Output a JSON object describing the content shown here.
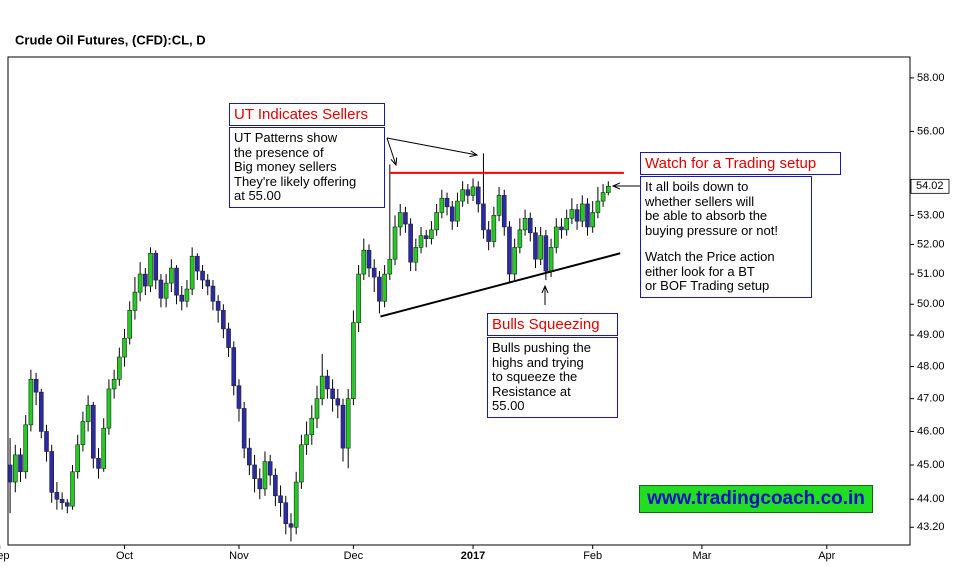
{
  "chart_data": {
    "type": "candlestick",
    "title": "Crude Oil Futures, (CFD):CL, D",
    "log_scale": true,
    "xlim": [
      -0.4,
      173
    ],
    "ylim": [
      42.7,
      58.8
    ],
    "xticks": [
      {
        "value": -2,
        "label": "Sep"
      },
      {
        "value": 22,
        "label": "Oct"
      },
      {
        "value": 44,
        "label": "Nov"
      },
      {
        "value": 66,
        "label": "Dec"
      },
      {
        "value": 89,
        "label": "2017"
      },
      {
        "value": 112,
        "label": "Feb"
      },
      {
        "value": 133,
        "label": "Mar"
      },
      {
        "value": 157,
        "label": "Apr"
      }
    ],
    "yticks": [
      {
        "value": 43.2,
        "label": "43.20"
      },
      {
        "value": 44,
        "label": "44.00"
      },
      {
        "value": 45,
        "label": "45.00"
      },
      {
        "value": 46,
        "label": "46.00"
      },
      {
        "value": 47,
        "label": "47.00"
      },
      {
        "value": 48,
        "label": "48.00"
      },
      {
        "value": 49,
        "label": "49.00"
      },
      {
        "value": 50,
        "label": "50.00"
      },
      {
        "value": 51,
        "label": "51.00"
      },
      {
        "value": 52,
        "label": "52.00"
      },
      {
        "value": 53,
        "label": "53.00"
      },
      {
        "value": 56,
        "label": "56.00"
      },
      {
        "value": 58,
        "label": "58.00"
      }
    ],
    "last_price": 54.02,
    "up_color": "#22cc22",
    "down_color": "#2a2aa8",
    "open": [
      45.0,
      44.5,
      45.3,
      44.8,
      46.2,
      47.6,
      47.2,
      46.0,
      45.4,
      44.2,
      44.0,
      43.9,
      43.8,
      44.8,
      45.6,
      46.3,
      46.8,
      45.2,
      44.9,
      46.1,
      47.3,
      47.6,
      48.3,
      48.9,
      49.8,
      50.4,
      51.0,
      50.6,
      51.7,
      50.8,
      50.2,
      50.7,
      51.2,
      50.3,
      50.1,
      50.5,
      51.6,
      51.1,
      50.8,
      50.6,
      50.1,
      49.8,
      49.2,
      48.6,
      47.4,
      46.7,
      45.5,
      45.0,
      44.6,
      44.3,
      45.1,
      44.7,
      44.1,
      43.9,
      43.3,
      43.2,
      44.5,
      45.6,
      45.9,
      46.4,
      47.0,
      47.7,
      47.3,
      47.0,
      46.8,
      45.5,
      47.0,
      49.4,
      51.0,
      51.8,
      51.2,
      50.9,
      50.1,
      51.0,
      51.5,
      52.6,
      53.1,
      52.7,
      51.4,
      51.9,
      52.3,
      52.2,
      52.5,
      53.1,
      53.6,
      53.3,
      52.8,
      53.5,
      53.9,
      53.7,
      54.0,
      53.4,
      52.5,
      52.1,
      53.0,
      53.7,
      52.6,
      51.0,
      51.9,
      52.5,
      52.9,
      52.4,
      51.5,
      52.3,
      51.1,
      51.9,
      52.6,
      52.5,
      52.9,
      53.2,
      52.8,
      53.4,
      52.6,
      53.1,
      53.5,
      53.8
    ],
    "high": [
      45.8,
      45.6,
      45.5,
      46.5,
      47.9,
      47.8,
      47.3,
      46.2,
      45.6,
      44.5,
      44.2,
      44.0,
      45.0,
      45.9,
      46.6,
      47.1,
      46.9,
      45.5,
      46.4,
      47.6,
      47.9,
      48.6,
      49.2,
      50.1,
      50.9,
      51.4,
      51.2,
      51.9,
      51.8,
      51.0,
      51.0,
      51.5,
      51.3,
      50.6,
      50.8,
      51.9,
      51.7,
      51.3,
      51.0,
      50.8,
      50.3,
      50.0,
      49.4,
      48.8,
      47.6,
      46.9,
      45.8,
      45.3,
      44.9,
      45.4,
      45.3,
      44.9,
      44.4,
      44.1,
      43.6,
      44.8,
      45.9,
      46.3,
      46.8,
      47.4,
      48.4,
      47.9,
      47.6,
      47.3,
      47.0,
      47.3,
      49.8,
      51.3,
      52.2,
      52.0,
      51.5,
      51.1,
      51.3,
      54.8,
      53.0,
      53.4,
      53.3,
      52.9,
      52.2,
      52.6,
      52.5,
      52.8,
      53.4,
      53.9,
      53.8,
      53.5,
      53.8,
      54.2,
      54.1,
      54.3,
      54.2,
      55.2,
      52.8,
      53.3,
      54.0,
      53.9,
      52.8,
      52.2,
      52.9,
      53.2,
      53.1,
      52.6,
      52.6,
      52.5,
      52.2,
      52.9,
      52.9,
      53.2,
      53.6,
      53.4,
      53.7,
      53.6,
      53.5,
      54.0,
      54.1,
      54.2
    ],
    "low": [
      43.6,
      44.2,
      44.5,
      44.6,
      46.0,
      46.8,
      45.8,
      45.1,
      43.9,
      43.7,
      43.7,
      43.6,
      43.7,
      44.6,
      45.4,
      46.0,
      44.9,
      44.6,
      44.8,
      45.9,
      47.0,
      47.4,
      48.0,
      48.7,
      49.5,
      50.1,
      50.3,
      50.4,
      50.5,
      49.9,
      49.9,
      50.4,
      50.0,
      49.8,
      49.9,
      50.3,
      50.8,
      50.5,
      50.3,
      49.8,
      49.4,
      48.9,
      48.3,
      47.1,
      46.3,
      45.2,
      44.7,
      44.2,
      44.0,
      44.1,
      44.4,
      43.8,
      43.5,
      43.0,
      42.8,
      43.0,
      44.3,
      45.3,
      45.6,
      46.1,
      46.8,
      47.0,
      46.6,
      46.4,
      45.1,
      44.9,
      46.8,
      49.1,
      50.8,
      50.9,
      50.4,
      49.7,
      49.9,
      50.8,
      51.3,
      52.3,
      52.4,
      51.1,
      51.1,
      51.7,
      51.9,
      52.0,
      52.3,
      52.9,
      53.0,
      52.5,
      52.6,
      53.3,
      53.4,
      53.5,
      53.1,
      52.2,
      51.8,
      51.9,
      52.8,
      52.3,
      50.7,
      50.8,
      51.7,
      52.3,
      52.1,
      51.2,
      51.3,
      50.8,
      50.9,
      51.7,
      52.2,
      52.3,
      52.7,
      52.5,
      52.6,
      52.3,
      52.4,
      52.9,
      53.3,
      53.7
    ],
    "close": [
      44.5,
      45.3,
      44.8,
      46.2,
      47.6,
      47.2,
      46.0,
      45.4,
      44.2,
      44.0,
      43.9,
      43.8,
      44.8,
      45.6,
      46.3,
      46.8,
      45.2,
      44.9,
      46.1,
      47.3,
      47.6,
      48.3,
      48.9,
      49.8,
      50.4,
      51.0,
      50.6,
      51.7,
      50.8,
      50.2,
      50.7,
      51.2,
      50.3,
      50.1,
      50.5,
      51.6,
      51.1,
      50.8,
      50.6,
      50.1,
      49.8,
      49.2,
      48.6,
      47.4,
      46.7,
      45.5,
      45.0,
      44.6,
      44.3,
      45.1,
      44.7,
      44.1,
      43.9,
      43.3,
      43.2,
      44.5,
      45.6,
      45.9,
      46.4,
      47.0,
      47.7,
      47.3,
      47.0,
      46.8,
      45.5,
      47.0,
      49.4,
      51.0,
      51.8,
      51.2,
      50.9,
      50.1,
      51.0,
      51.5,
      52.6,
      53.1,
      52.7,
      51.4,
      51.9,
      52.3,
      52.2,
      52.5,
      53.1,
      53.6,
      53.3,
      52.8,
      53.5,
      53.9,
      53.7,
      54.0,
      53.4,
      52.5,
      52.1,
      53.0,
      53.7,
      52.6,
      51.0,
      51.9,
      52.5,
      52.9,
      52.4,
      51.5,
      52.3,
      51.1,
      51.9,
      52.6,
      52.5,
      52.9,
      53.2,
      52.8,
      53.4,
      52.6,
      53.1,
      53.5,
      53.8,
      54.02
    ],
    "lines": [
      {
        "color": "#ff0000",
        "x": [
          73,
          118
        ],
        "y": [
          54.5,
          54.5
        ]
      },
      {
        "color": "#000000",
        "x": [
          71.2,
          117.3
        ],
        "y": [
          49.6,
          51.7
        ]
      }
    ],
    "annotations": [
      {
        "title": "UT Indicates Sellers",
        "lines": [
          "UT Patterns show",
          "the presence of",
          "Big money sellers",
          "They're likely offering",
          "at 55.00"
        ]
      },
      {
        "title": "Watch for a Trading setup",
        "lines": [
          "It all boils down to",
          "whether sellers will",
          "be able to absorb the",
          "buying pressure or not!"
        ],
        "lines2": [
          "Watch the Price action",
          "either look for a BT",
          "or BOF Trading setup"
        ]
      },
      {
        "title": "Bulls Squeezing",
        "lines": [
          "Bulls pushing the",
          "highs and trying",
          "to squeeze the",
          "Resistance at",
          "55.00"
        ]
      }
    ],
    "watermark": "www.tradingcoach.co.in"
  }
}
